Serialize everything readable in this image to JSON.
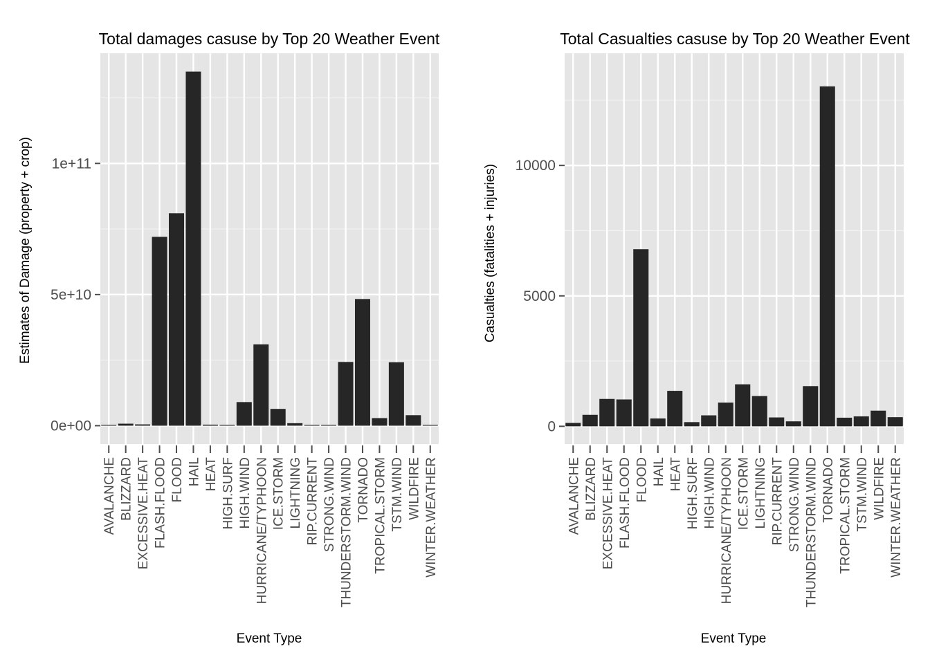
{
  "colors": {
    "panel": "#e5e5e5",
    "grid_major": "#ffffff",
    "grid_minor": "#f2f2f2",
    "bar": "#262626",
    "tick": "#4d4d4d"
  },
  "chart_data": [
    {
      "type": "bar",
      "title": "Total damages casuse by Top 20 Weather Event",
      "xlabel": "Event Type",
      "ylabel": "Estimates of Damage (property + crop)",
      "grid": true,
      "legend": "none",
      "ylim": [
        -7000000000,
        142000000000
      ],
      "yticks": [
        0,
        50000000000,
        100000000000
      ],
      "ytick_labels": [
        "0e+00",
        "5e+10",
        "1e+11"
      ],
      "categories": [
        "AVALANCHE",
        "BLIZZARD",
        "EXCESSIVE.HEAT",
        "FLASH.FLOOD",
        "FLOOD",
        "HAIL",
        "HEAT",
        "HIGH.SURF",
        "HIGH.WIND",
        "HURRICANE/TYPHOON",
        "ICE.STORM",
        "LIGHTNING",
        "RIP.CURRENT",
        "STRONG.WIND",
        "THUNDERSTORM.WIND",
        "TORNADO",
        "TROPICAL.STORM",
        "TSTM.WIND",
        "WILDFIRE",
        "WINTER.WEATHER"
      ],
      "values": [
        3700000,
        770000000,
        500000000,
        72000000000,
        81000000000,
        135000000000,
        400000000,
        90000000,
        9000000000,
        31000000000,
        6400000000,
        950000000,
        200000,
        240000000,
        24300000000,
        48300000000,
        2900000000,
        24200000000,
        4000000000,
        30000000
      ]
    },
    {
      "type": "bar",
      "title": "Total Casualties casuse by Top 20 Weather Event",
      "xlabel": "Event Type",
      "ylabel": "Casualties (fatalities + injuries)",
      "grid": true,
      "legend": "none",
      "ylim": [
        -680,
        14300
      ],
      "yticks": [
        0,
        5000,
        10000
      ],
      "ytick_labels": [
        "0",
        "5000",
        "10000"
      ],
      "categories": [
        "AVALANCHE",
        "BLIZZARD",
        "EXCESSIVE.HEAT",
        "FLASH.FLOOD",
        "FLOOD",
        "HAIL",
        "HEAT",
        "HIGH.SURF",
        "HIGH.WIND",
        "HURRICANE/TYPHOON",
        "ICE.STORM",
        "LIGHTNING",
        "RIP.CURRENT",
        "STRONG.WIND",
        "THUNDERSTORM.WIND",
        "TORNADO",
        "TROPICAL.STORM",
        "TSTM.WIND",
        "WILDFIRE",
        "WINTER.WEATHER"
      ],
      "values": [
        130,
        440,
        1050,
        1030,
        6790,
        300,
        1360,
        160,
        420,
        910,
        1610,
        1160,
        340,
        190,
        1540,
        13030,
        330,
        380,
        600,
        350
      ]
    }
  ]
}
